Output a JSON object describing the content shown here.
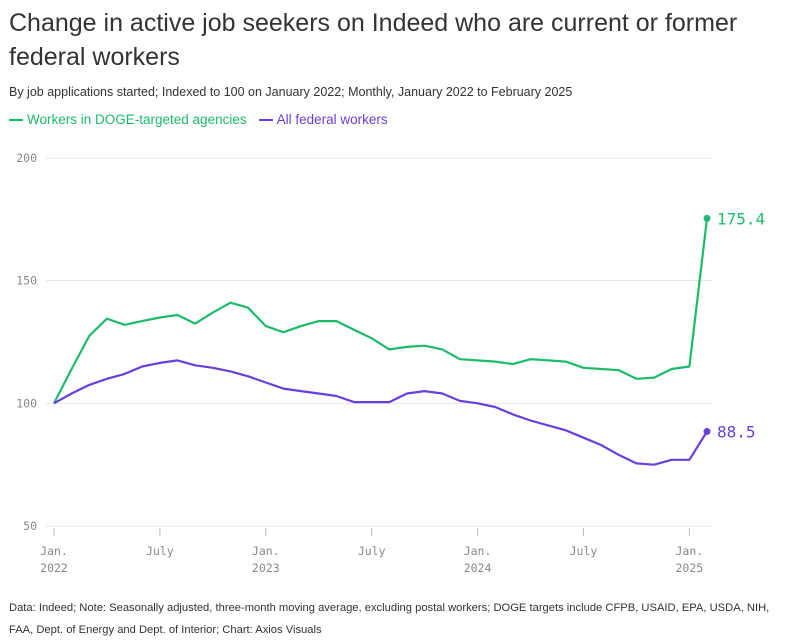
{
  "title": "Change in active job seekers on Indeed who are current or former federal workers",
  "subtitle": "By job applications started; Indexed to 100 on January 2022; Monthly, January 2022 to February 2025",
  "footer": "Data: Indeed; Note: Seasonally adjusted, three-month moving average, excluding postal workers; DOGE targets include CFPB, USAID, EPA, USDA, NIH, FAA, Dept. of Energy and Dept. of Interior; Chart: Axios Visuals",
  "colors": {
    "doge": "#1cbb6b",
    "federal": "#6a3fdc",
    "grid": "#e6e6e6",
    "axis_text": "#888888"
  },
  "legend": [
    {
      "label": "Workers in DOGE-targeted agencies",
      "color": "#1cbb6b"
    },
    {
      "label": "All federal workers",
      "color": "#6a3fdc"
    }
  ],
  "chart_data": {
    "type": "line",
    "title": "Change in active job seekers on Indeed who are current or former federal workers",
    "xlabel": "",
    "ylabel": "",
    "ylim": [
      50,
      200
    ],
    "yticks": [
      50,
      100,
      150,
      200
    ],
    "grid": true,
    "x_start": "2022-01",
    "x_end": "2025-02",
    "xticks": [
      {
        "month": 0,
        "line1": "Jan.",
        "line2": "2022"
      },
      {
        "month": 6,
        "line1": "July",
        "line2": ""
      },
      {
        "month": 12,
        "line1": "Jan.",
        "line2": "2023"
      },
      {
        "month": 18,
        "line1": "July",
        "line2": ""
      },
      {
        "month": 24,
        "line1": "Jan.",
        "line2": "2024"
      },
      {
        "month": 30,
        "line1": "July",
        "line2": ""
      },
      {
        "month": 36,
        "line1": "Jan.",
        "line2": "2025"
      }
    ],
    "series": [
      {
        "name": "Workers in DOGE-targeted agencies",
        "color": "#1cbb6b",
        "end_label": "175.4",
        "values": [
          100,
          114,
          127.5,
          134.5,
          132,
          133.5,
          135,
          136,
          132.5,
          137,
          141,
          139,
          131.5,
          129,
          131.5,
          133.5,
          133.5,
          130,
          126.5,
          122,
          123,
          123.5,
          122,
          118,
          117.5,
          117,
          116,
          118,
          117.5,
          117,
          114.5,
          114,
          113.5,
          110,
          110.5,
          114,
          115,
          175.4
        ]
      },
      {
        "name": "All federal workers",
        "color": "#6a3fdc",
        "end_label": "88.5",
        "values": [
          100,
          104,
          107.5,
          110,
          112,
          115,
          116.5,
          117.5,
          115.5,
          114.5,
          113,
          111,
          108.5,
          106,
          105,
          104,
          103,
          100.5,
          100.5,
          100.5,
          104,
          105,
          104,
          101,
          100,
          98.5,
          95.5,
          93,
          91,
          89,
          86,
          83,
          79,
          75.5,
          75,
          77,
          77,
          88.5
        ]
      }
    ]
  }
}
